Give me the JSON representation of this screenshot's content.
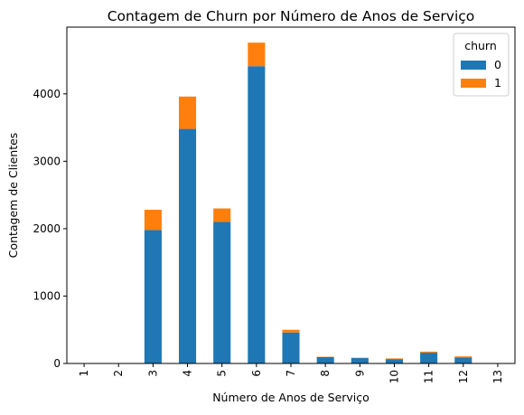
{
  "chart_data": {
    "type": "bar",
    "stacked": true,
    "title": "Contagem de Churn por Número de Anos de Serviço",
    "xlabel": "Número de Anos de Serviço",
    "ylabel": "Contagem de Clientes",
    "categories": [
      "1",
      "2",
      "3",
      "4",
      "5",
      "6",
      "7",
      "8",
      "9",
      "10",
      "11",
      "12",
      "13"
    ],
    "series": [
      {
        "name": "0",
        "color": "#1f77b4",
        "values": [
          2,
          3,
          1980,
          3480,
          2100,
          4410,
          460,
          95,
          80,
          65,
          160,
          90,
          5
        ]
      },
      {
        "name": "1",
        "color": "#ff7f0e",
        "values": [
          0,
          0,
          300,
          480,
          200,
          350,
          40,
          5,
          5,
          10,
          15,
          15,
          0
        ]
      }
    ],
    "ylim": [
      0,
      4990
    ],
    "yticks": [
      0,
      1000,
      2000,
      3000,
      4000
    ],
    "grid": false,
    "legend": {
      "title": "churn",
      "placement": "top-right"
    }
  }
}
